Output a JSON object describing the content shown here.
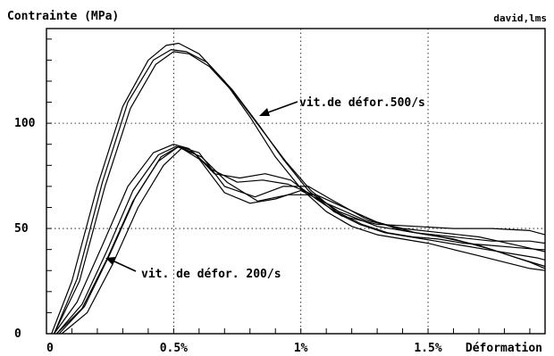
{
  "chart_data": {
    "type": "line",
    "title": "",
    "ylabel": "Contrainte (MPa)",
    "xlabel": "Déformation",
    "watermark": "david,lms",
    "xlim": [
      0,
      1.96
    ],
    "ylim": [
      0,
      145
    ],
    "x_ticks": [
      {
        "value": 0,
        "label": "0"
      },
      {
        "value": 0.5,
        "label": "0.5%"
      },
      {
        "value": 1.0,
        "label": "1%"
      },
      {
        "value": 1.5,
        "label": "1.5%"
      }
    ],
    "y_ticks": [
      {
        "value": 0,
        "label": "0"
      },
      {
        "value": 50,
        "label": "50"
      },
      {
        "value": 100,
        "label": "100"
      }
    ],
    "grid": true,
    "annotations": [
      {
        "text": "vit.de défor.500/s",
        "series_group": "500"
      },
      {
        "text": "vit. de défor. 200/s",
        "series_group": "200"
      }
    ],
    "series": [
      {
        "group": "500",
        "x": [
          0.02,
          0.1,
          0.2,
          0.3,
          0.4,
          0.47,
          0.52,
          0.6,
          0.7,
          0.8,
          0.9,
          1.0,
          1.1,
          1.2,
          1.3,
          1.4,
          1.5,
          1.6,
          1.7,
          1.8,
          1.9,
          1.96
        ],
        "y": [
          0,
          25,
          70,
          108,
          130,
          137,
          138,
          133,
          120,
          103,
          84,
          69,
          58,
          51,
          47,
          45,
          43,
          40,
          37,
          34,
          31,
          30
        ]
      },
      {
        "group": "500",
        "x": [
          0.03,
          0.12,
          0.22,
          0.32,
          0.42,
          0.49,
          0.55,
          0.63,
          0.73,
          0.83,
          0.93,
          1.03,
          1.13,
          1.23,
          1.33,
          1.43,
          1.53,
          1.63,
          1.73,
          1.83,
          1.93,
          1.96
        ],
        "y": [
          0,
          26,
          72,
          110,
          130,
          135,
          134,
          129,
          116,
          100,
          83,
          68,
          58,
          52,
          48,
          46,
          44,
          42,
          40,
          38,
          36,
          35
        ]
      },
      {
        "group": "500",
        "x": [
          0.03,
          0.13,
          0.23,
          0.33,
          0.43,
          0.5,
          0.56,
          0.64,
          0.74,
          0.84,
          0.94,
          1.04,
          1.14,
          1.24,
          1.34,
          1.44,
          1.54,
          1.64,
          1.74,
          1.84,
          1.94,
          1.96
        ],
        "y": [
          0,
          25,
          70,
          107,
          128,
          134,
          133,
          127,
          114,
          98,
          82,
          68,
          58,
          52,
          48,
          46,
          45,
          43,
          42,
          41,
          40,
          40
        ]
      },
      {
        "group": "200",
        "x": [
          0.03,
          0.12,
          0.22,
          0.32,
          0.42,
          0.5,
          0.56,
          0.65,
          0.75,
          0.85,
          0.95,
          1.05,
          1.15,
          1.3,
          1.45,
          1.6,
          1.75,
          1.9,
          1.96
        ],
        "y": [
          0,
          15,
          42,
          70,
          86,
          90,
          88,
          78,
          72,
          73,
          71,
          66,
          58,
          51,
          48,
          46,
          44,
          44,
          43
        ]
      },
      {
        "group": "200",
        "x": [
          0.04,
          0.14,
          0.24,
          0.34,
          0.44,
          0.51,
          0.58,
          0.66,
          0.76,
          0.86,
          0.96,
          1.06,
          1.16,
          1.3,
          1.45,
          1.6,
          1.75,
          1.9,
          1.96
        ],
        "y": [
          0,
          14,
          40,
          68,
          85,
          89,
          86,
          76,
          74,
          76,
          73,
          64,
          56,
          52,
          51,
          50,
          50,
          49,
          47
        ]
      },
      {
        "group": "200",
        "x": [
          0.05,
          0.15,
          0.25,
          0.35,
          0.45,
          0.52,
          0.6,
          0.7,
          0.8,
          0.9,
          1.0,
          1.1,
          1.25,
          1.4,
          1.55,
          1.7,
          1.85,
          1.96
        ],
        "y": [
          0,
          13,
          38,
          65,
          84,
          89,
          83,
          67,
          62,
          64,
          68,
          62,
          54,
          50,
          48,
          46,
          42,
          39
        ]
      },
      {
        "group": "200",
        "x": [
          0.04,
          0.14,
          0.24,
          0.34,
          0.44,
          0.52,
          0.6,
          0.7,
          0.82,
          0.93,
          1.03,
          1.13,
          1.25,
          1.4,
          1.55,
          1.7,
          1.85,
          1.96
        ],
        "y": [
          0,
          12,
          36,
          63,
          82,
          89,
          86,
          70,
          65,
          70,
          70,
          63,
          55,
          49,
          46,
          42,
          36,
          32
        ]
      },
      {
        "group": "200",
        "x": [
          0.06,
          0.16,
          0.26,
          0.36,
          0.46,
          0.53,
          0.61,
          0.71,
          0.83,
          0.95,
          1.06,
          1.17,
          1.3,
          1.45,
          1.6,
          1.75,
          1.9,
          1.96
        ],
        "y": [
          0,
          10,
          33,
          60,
          80,
          88,
          84,
          72,
          63,
          66,
          66,
          60,
          53,
          48,
          45,
          40,
          34,
          31
        ]
      }
    ]
  }
}
